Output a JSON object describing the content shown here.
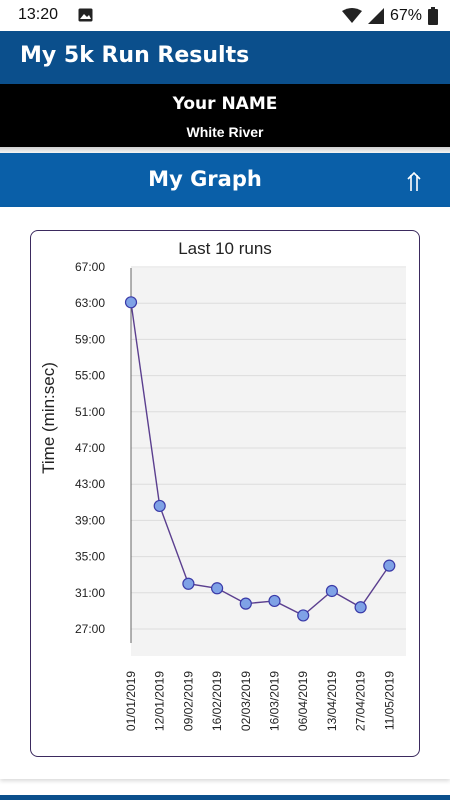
{
  "status_bar": {
    "time": "13:20",
    "battery_percent": "67%",
    "icons": [
      "image-icon",
      "wifi-icon",
      "signal-icon",
      "battery-icon"
    ]
  },
  "app_bar": {
    "title": "My 5k Run Results"
  },
  "runner": {
    "name": "Your NAME",
    "club": "White River"
  },
  "section": {
    "title": "My Graph",
    "collapse_icon": "double-up-arrow-icon"
  },
  "colors": {
    "app_bar": "#0b4f8c",
    "section_header": "#0a5fa8",
    "name_band": "#000000",
    "series_line": "#5b3f8f",
    "marker": "#7fa2e6"
  },
  "chart_data": {
    "type": "line",
    "title": "Last 10 runs",
    "xlabel": "",
    "ylabel": "Time (min:sec)",
    "categories": [
      "01/01/2019",
      "12/01/2019",
      "09/02/2019",
      "16/02/2019",
      "02/03/2019",
      "16/03/2019",
      "06/04/2019",
      "13/04/2019",
      "27/04/2019",
      "11/05/2019"
    ],
    "y_ticks": [
      "67:00",
      "63:00",
      "59:00",
      "55:00",
      "51:00",
      "47:00",
      "43:00",
      "39:00",
      "35:00",
      "31:00",
      "27:00"
    ],
    "y_tick_minutes": [
      67,
      63,
      59,
      55,
      51,
      47,
      43,
      39,
      35,
      31,
      27
    ],
    "ylim_minutes": [
      27,
      67
    ],
    "values_minutes": [
      63.1,
      40.6,
      32.0,
      31.5,
      29.8,
      30.1,
      28.5,
      31.2,
      29.4,
      34.0
    ],
    "grid": true
  }
}
